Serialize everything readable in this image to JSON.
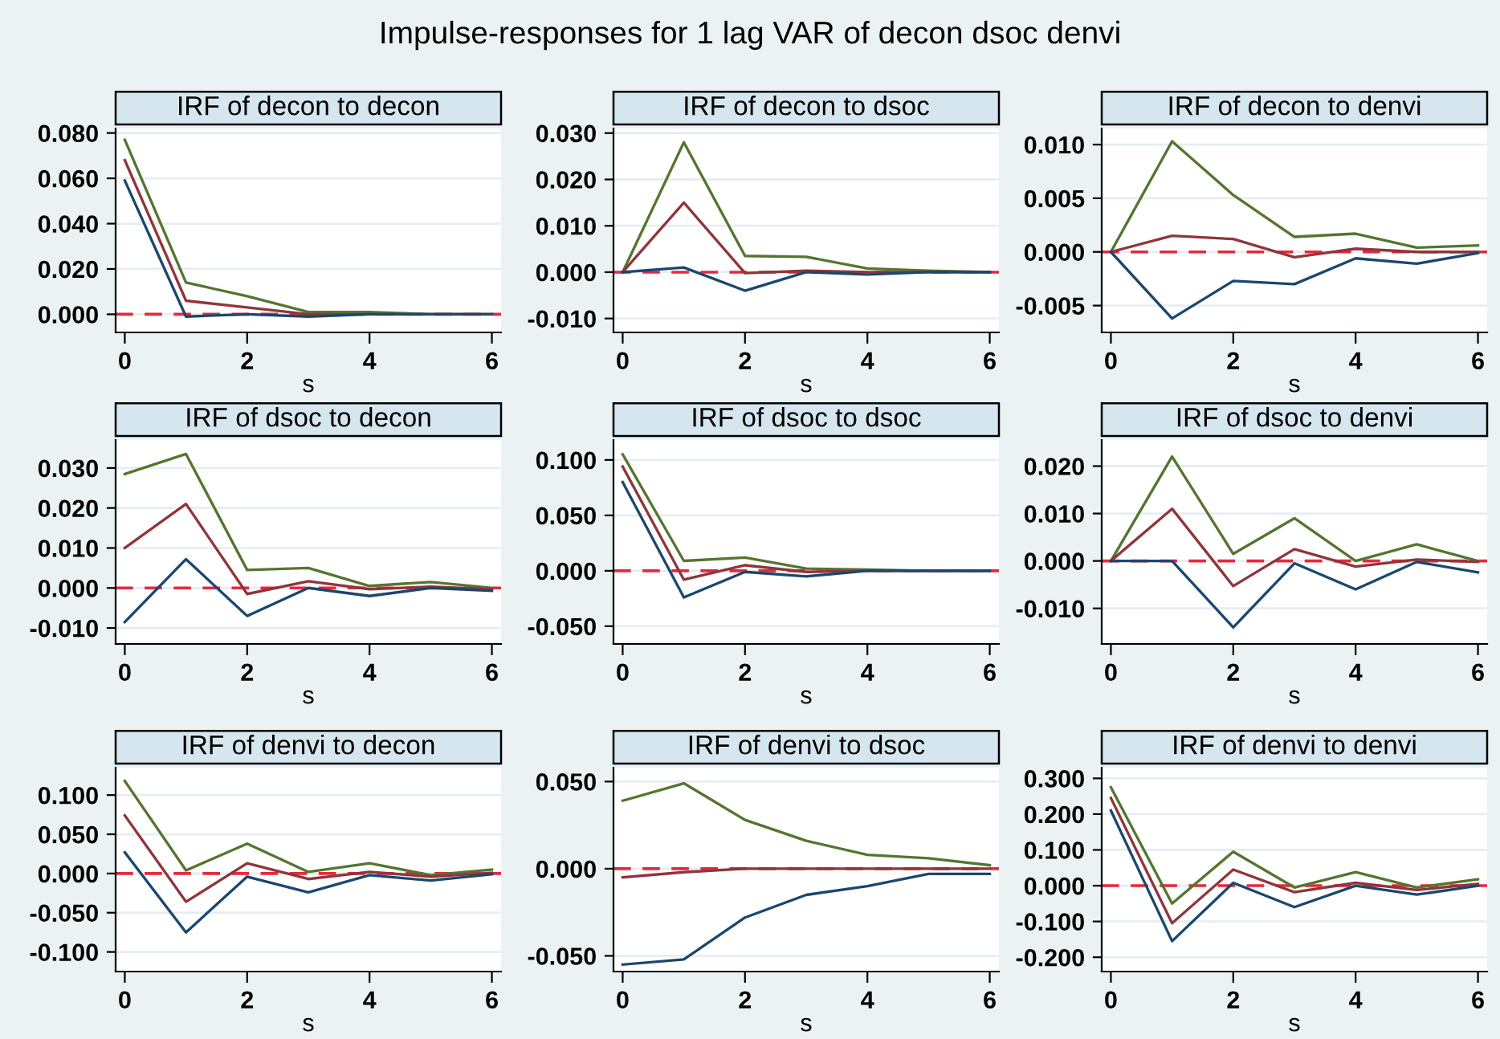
{
  "chart_data": [
    {
      "type": "line",
      "title": "IRF of decon to decon",
      "xlabel": "s",
      "annotations": [
        "Impulse-responses for 1 lag VAR of decon dsoc denvi"
      ],
      "x": [
        0,
        1,
        2,
        3,
        4,
        5,
        6
      ],
      "xlim": [
        -0.15,
        6.15
      ],
      "xticks": [
        0,
        2,
        4,
        6
      ],
      "ylim": [
        -0.008,
        0.082
      ],
      "yticks": [
        {
          "value": 0,
          "label": "0.000"
        },
        {
          "value": 0.02,
          "label": "0.020"
        },
        {
          "value": 0.04,
          "label": "0.040"
        },
        {
          "value": 0.06,
          "label": "0.060"
        },
        {
          "value": 0.08,
          "label": "0.080"
        }
      ],
      "grid": "y",
      "legend": false,
      "ref_lines": [
        {
          "axis": "y",
          "value": 0,
          "color": "#e8283c",
          "line_style": "dashed"
        }
      ],
      "series": [
        {
          "color": "#55752f",
          "values": [
            0.077,
            0.014,
            0.008,
            0.001,
            0.001,
            0,
            0
          ]
        },
        {
          "color": "#90353b",
          "values": [
            0.068,
            0.006,
            0.003,
            0,
            0,
            0,
            0
          ]
        },
        {
          "color": "#1a476f",
          "values": [
            0.059,
            -0.001,
            0,
            -0.001,
            0,
            0,
            0
          ]
        }
      ]
    },
    {
      "type": "line",
      "title": "IRF of decon to dsoc",
      "xlabel": "s",
      "x": [
        0,
        1,
        2,
        3,
        4,
        5,
        6
      ],
      "xlim": [
        -0.15,
        6.15
      ],
      "xticks": [
        0,
        2,
        4,
        6
      ],
      "ylim": [
        -0.013,
        0.031
      ],
      "yticks": [
        {
          "value": -0.01,
          "label": "-0.010"
        },
        {
          "value": 0,
          "label": "0.000"
        },
        {
          "value": 0.01,
          "label": "0.010"
        },
        {
          "value": 0.02,
          "label": "0.020"
        },
        {
          "value": 0.03,
          "label": "0.030"
        }
      ],
      "grid": "y",
      "legend": false,
      "ref_lines": [
        {
          "axis": "y",
          "value": 0,
          "color": "#e8283c",
          "line_style": "dashed"
        }
      ],
      "series": [
        {
          "color": "#55752f",
          "values": [
            0,
            0.028,
            0.0035,
            0.0033,
            0.0008,
            0.0003,
            0
          ]
        },
        {
          "color": "#90353b",
          "values": [
            0,
            0.015,
            -0.0002,
            0.0003,
            0,
            0,
            0
          ]
        },
        {
          "color": "#1a476f",
          "values": [
            0,
            0.001,
            -0.004,
            0,
            -0.0005,
            0,
            0
          ]
        }
      ]
    },
    {
      "type": "line",
      "title": "IRF of decon to denvi",
      "xlabel": "s",
      "x": [
        0,
        1,
        2,
        3,
        4,
        5,
        6
      ],
      "xlim": [
        -0.15,
        6.15
      ],
      "xticks": [
        0,
        2,
        4,
        6
      ],
      "ylim": [
        -0.0075,
        0.0115
      ],
      "yticks": [
        {
          "value": -0.005,
          "label": "-0.005"
        },
        {
          "value": 0,
          "label": "0.000"
        },
        {
          "value": 0.005,
          "label": "0.005"
        },
        {
          "value": 0.01,
          "label": "0.010"
        }
      ],
      "grid": "y",
      "legend": false,
      "ref_lines": [
        {
          "axis": "y",
          "value": 0,
          "color": "#e8283c",
          "line_style": "dashed"
        }
      ],
      "series": [
        {
          "color": "#55752f",
          "values": [
            0,
            0.0103,
            0.0053,
            0.0014,
            0.0017,
            0.0004,
            0.0006
          ]
        },
        {
          "color": "#90353b",
          "values": [
            0,
            0.0015,
            0.0012,
            -0.0005,
            0.0003,
            0,
            0
          ]
        },
        {
          "color": "#1a476f",
          "values": [
            0,
            -0.0062,
            -0.0027,
            -0.003,
            -0.0006,
            -0.0011,
            -0.0001
          ]
        }
      ]
    },
    {
      "type": "line",
      "title": "IRF of dsoc to decon",
      "xlabel": "s",
      "x": [
        0,
        1,
        2,
        3,
        4,
        5,
        6
      ],
      "xlim": [
        -0.15,
        6.15
      ],
      "xticks": [
        0,
        2,
        4,
        6
      ],
      "ylim": [
        -0.014,
        0.037
      ],
      "yticks": [
        {
          "value": -0.01,
          "label": "-0.010"
        },
        {
          "value": 0,
          "label": "0.000"
        },
        {
          "value": 0.01,
          "label": "0.010"
        },
        {
          "value": 0.02,
          "label": "0.020"
        },
        {
          "value": 0.03,
          "label": "0.030"
        }
      ],
      "grid": "y",
      "legend": false,
      "ref_lines": [
        {
          "axis": "y",
          "value": 0,
          "color": "#e8283c",
          "line_style": "dashed"
        }
      ],
      "series": [
        {
          "color": "#55752f",
          "values": [
            0.0285,
            0.0335,
            0.0045,
            0.005,
            0.0005,
            0.0015,
            0
          ]
        },
        {
          "color": "#90353b",
          "values": [
            0.01,
            0.021,
            -0.0015,
            0.0017,
            -0.0003,
            0.0003,
            -0.0003
          ]
        },
        {
          "color": "#1a476f",
          "values": [
            -0.0085,
            0.0072,
            -0.007,
            0,
            -0.002,
            0,
            -0.0007
          ]
        }
      ]
    },
    {
      "type": "line",
      "title": "IRF of dsoc to dsoc",
      "xlabel": "s",
      "x": [
        0,
        1,
        2,
        3,
        4,
        5,
        6
      ],
      "xlim": [
        -0.15,
        6.15
      ],
      "xticks": [
        0,
        2,
        4,
        6
      ],
      "ylim": [
        -0.066,
        0.118
      ],
      "yticks": [
        {
          "value": -0.05,
          "label": "-0.050"
        },
        {
          "value": 0,
          "label": "0.000"
        },
        {
          "value": 0.05,
          "label": "0.050"
        },
        {
          "value": 0.1,
          "label": "0.100"
        }
      ],
      "grid": "y",
      "legend": false,
      "ref_lines": [
        {
          "axis": "y",
          "value": 0,
          "color": "#e8283c",
          "line_style": "dashed"
        }
      ],
      "series": [
        {
          "color": "#55752f",
          "values": [
            0.105,
            0.009,
            0.012,
            0.002,
            0.001,
            0,
            0
          ]
        },
        {
          "color": "#90353b",
          "values": [
            0.094,
            -0.008,
            0.005,
            -0.001,
            0,
            0,
            0
          ]
        },
        {
          "color": "#1a476f",
          "values": [
            0.08,
            -0.024,
            -0.001,
            -0.005,
            0,
            0,
            0
          ]
        }
      ]
    },
    {
      "type": "line",
      "title": "IRF of dsoc to denvi",
      "xlabel": "s",
      "x": [
        0,
        1,
        2,
        3,
        4,
        5,
        6
      ],
      "xlim": [
        -0.15,
        6.15
      ],
      "xticks": [
        0,
        2,
        4,
        6
      ],
      "ylim": [
        -0.0175,
        0.0255
      ],
      "yticks": [
        {
          "value": -0.01,
          "label": "-0.010"
        },
        {
          "value": 0,
          "label": "0.000"
        },
        {
          "value": 0.01,
          "label": "0.010"
        },
        {
          "value": 0.02,
          "label": "0.020"
        }
      ],
      "grid": "y",
      "legend": false,
      "ref_lines": [
        {
          "axis": "y",
          "value": 0,
          "color": "#e8283c",
          "line_style": "dashed"
        }
      ],
      "series": [
        {
          "color": "#55752f",
          "values": [
            0,
            0.022,
            0.0015,
            0.009,
            0,
            0.0035,
            0
          ]
        },
        {
          "color": "#90353b",
          "values": [
            0,
            0.011,
            -0.0053,
            0.0025,
            -0.0012,
            0.0003,
            -0.0002
          ]
        },
        {
          "color": "#1a476f",
          "values": [
            0,
            0,
            -0.014,
            -0.0005,
            -0.006,
            -0.0002,
            -0.0024
          ]
        }
      ]
    },
    {
      "type": "line",
      "title": "IRF of denvi to decon",
      "xlabel": "s",
      "x": [
        0,
        1,
        2,
        3,
        4,
        5,
        6
      ],
      "xlim": [
        -0.15,
        6.15
      ],
      "xticks": [
        0,
        2,
        4,
        6
      ],
      "ylim": [
        -0.125,
        0.135
      ],
      "yticks": [
        {
          "value": -0.1,
          "label": "-0.100"
        },
        {
          "value": -0.05,
          "label": "-0.050"
        },
        {
          "value": 0,
          "label": "0.000"
        },
        {
          "value": 0.05,
          "label": "0.050"
        },
        {
          "value": 0.1,
          "label": "0.100"
        }
      ],
      "grid": "y",
      "legend": false,
      "ref_lines": [
        {
          "axis": "y",
          "value": 0,
          "color": "#e8283c",
          "line_style": "dashed"
        }
      ],
      "series": [
        {
          "color": "#55752f",
          "values": [
            0.118,
            0.004,
            0.038,
            0.002,
            0.013,
            -0.002,
            0.005
          ]
        },
        {
          "color": "#90353b",
          "values": [
            0.074,
            -0.036,
            0.013,
            -0.007,
            0.002,
            -0.004,
            0.001
          ]
        },
        {
          "color": "#1a476f",
          "values": [
            0.027,
            -0.075,
            -0.004,
            -0.024,
            -0.002,
            -0.009,
            -0.001
          ]
        }
      ]
    },
    {
      "type": "line",
      "title": "IRF of denvi to dsoc",
      "xlabel": "s",
      "x": [
        0,
        1,
        2,
        3,
        4,
        5,
        6
      ],
      "xlim": [
        -0.15,
        6.15
      ],
      "xticks": [
        0,
        2,
        4,
        6
      ],
      "ylim": [
        -0.059,
        0.058
      ],
      "yticks": [
        {
          "value": -0.05,
          "label": "-0.050"
        },
        {
          "value": 0,
          "label": "0.000"
        },
        {
          "value": 0.05,
          "label": "0.050"
        }
      ],
      "grid": "y",
      "legend": false,
      "ref_lines": [
        {
          "axis": "y",
          "value": 0,
          "color": "#e8283c",
          "line_style": "dashed"
        }
      ],
      "series": [
        {
          "color": "#55752f",
          "values": [
            0.039,
            0.049,
            0.028,
            0.016,
            0.008,
            0.006,
            0.002
          ]
        },
        {
          "color": "#90353b",
          "values": [
            -0.005,
            -0.002,
            0,
            0,
            0,
            0,
            0
          ]
        },
        {
          "color": "#1a476f",
          "values": [
            -0.055,
            -0.052,
            -0.028,
            -0.015,
            -0.01,
            -0.003,
            -0.003
          ]
        }
      ]
    },
    {
      "type": "line",
      "title": "IRF of denvi to denvi",
      "xlabel": "s",
      "x": [
        0,
        1,
        2,
        3,
        4,
        5,
        6
      ],
      "xlim": [
        -0.15,
        6.15
      ],
      "xticks": [
        0,
        2,
        4,
        6
      ],
      "ylim": [
        -0.24,
        0.33
      ],
      "yticks": [
        {
          "value": -0.2,
          "label": "-0.200"
        },
        {
          "value": -0.1,
          "label": "-0.100"
        },
        {
          "value": 0,
          "label": "0.000"
        },
        {
          "value": 0.1,
          "label": "0.100"
        },
        {
          "value": 0.2,
          "label": "0.200"
        },
        {
          "value": 0.3,
          "label": "0.300"
        }
      ],
      "grid": "y",
      "legend": false,
      "ref_lines": [
        {
          "axis": "y",
          "value": 0,
          "color": "#e8283c",
          "line_style": "dashed"
        }
      ],
      "series": [
        {
          "color": "#55752f",
          "values": [
            0.275,
            -0.05,
            0.095,
            -0.005,
            0.038,
            -0.005,
            0.018
          ]
        },
        {
          "color": "#90353b",
          "values": [
            0.245,
            -0.105,
            0.045,
            -0.018,
            0.008,
            -0.012,
            0.005
          ]
        },
        {
          "color": "#1a476f",
          "values": [
            0.21,
            -0.155,
            0.008,
            -0.06,
            0,
            -0.025,
            0
          ]
        }
      ]
    }
  ]
}
